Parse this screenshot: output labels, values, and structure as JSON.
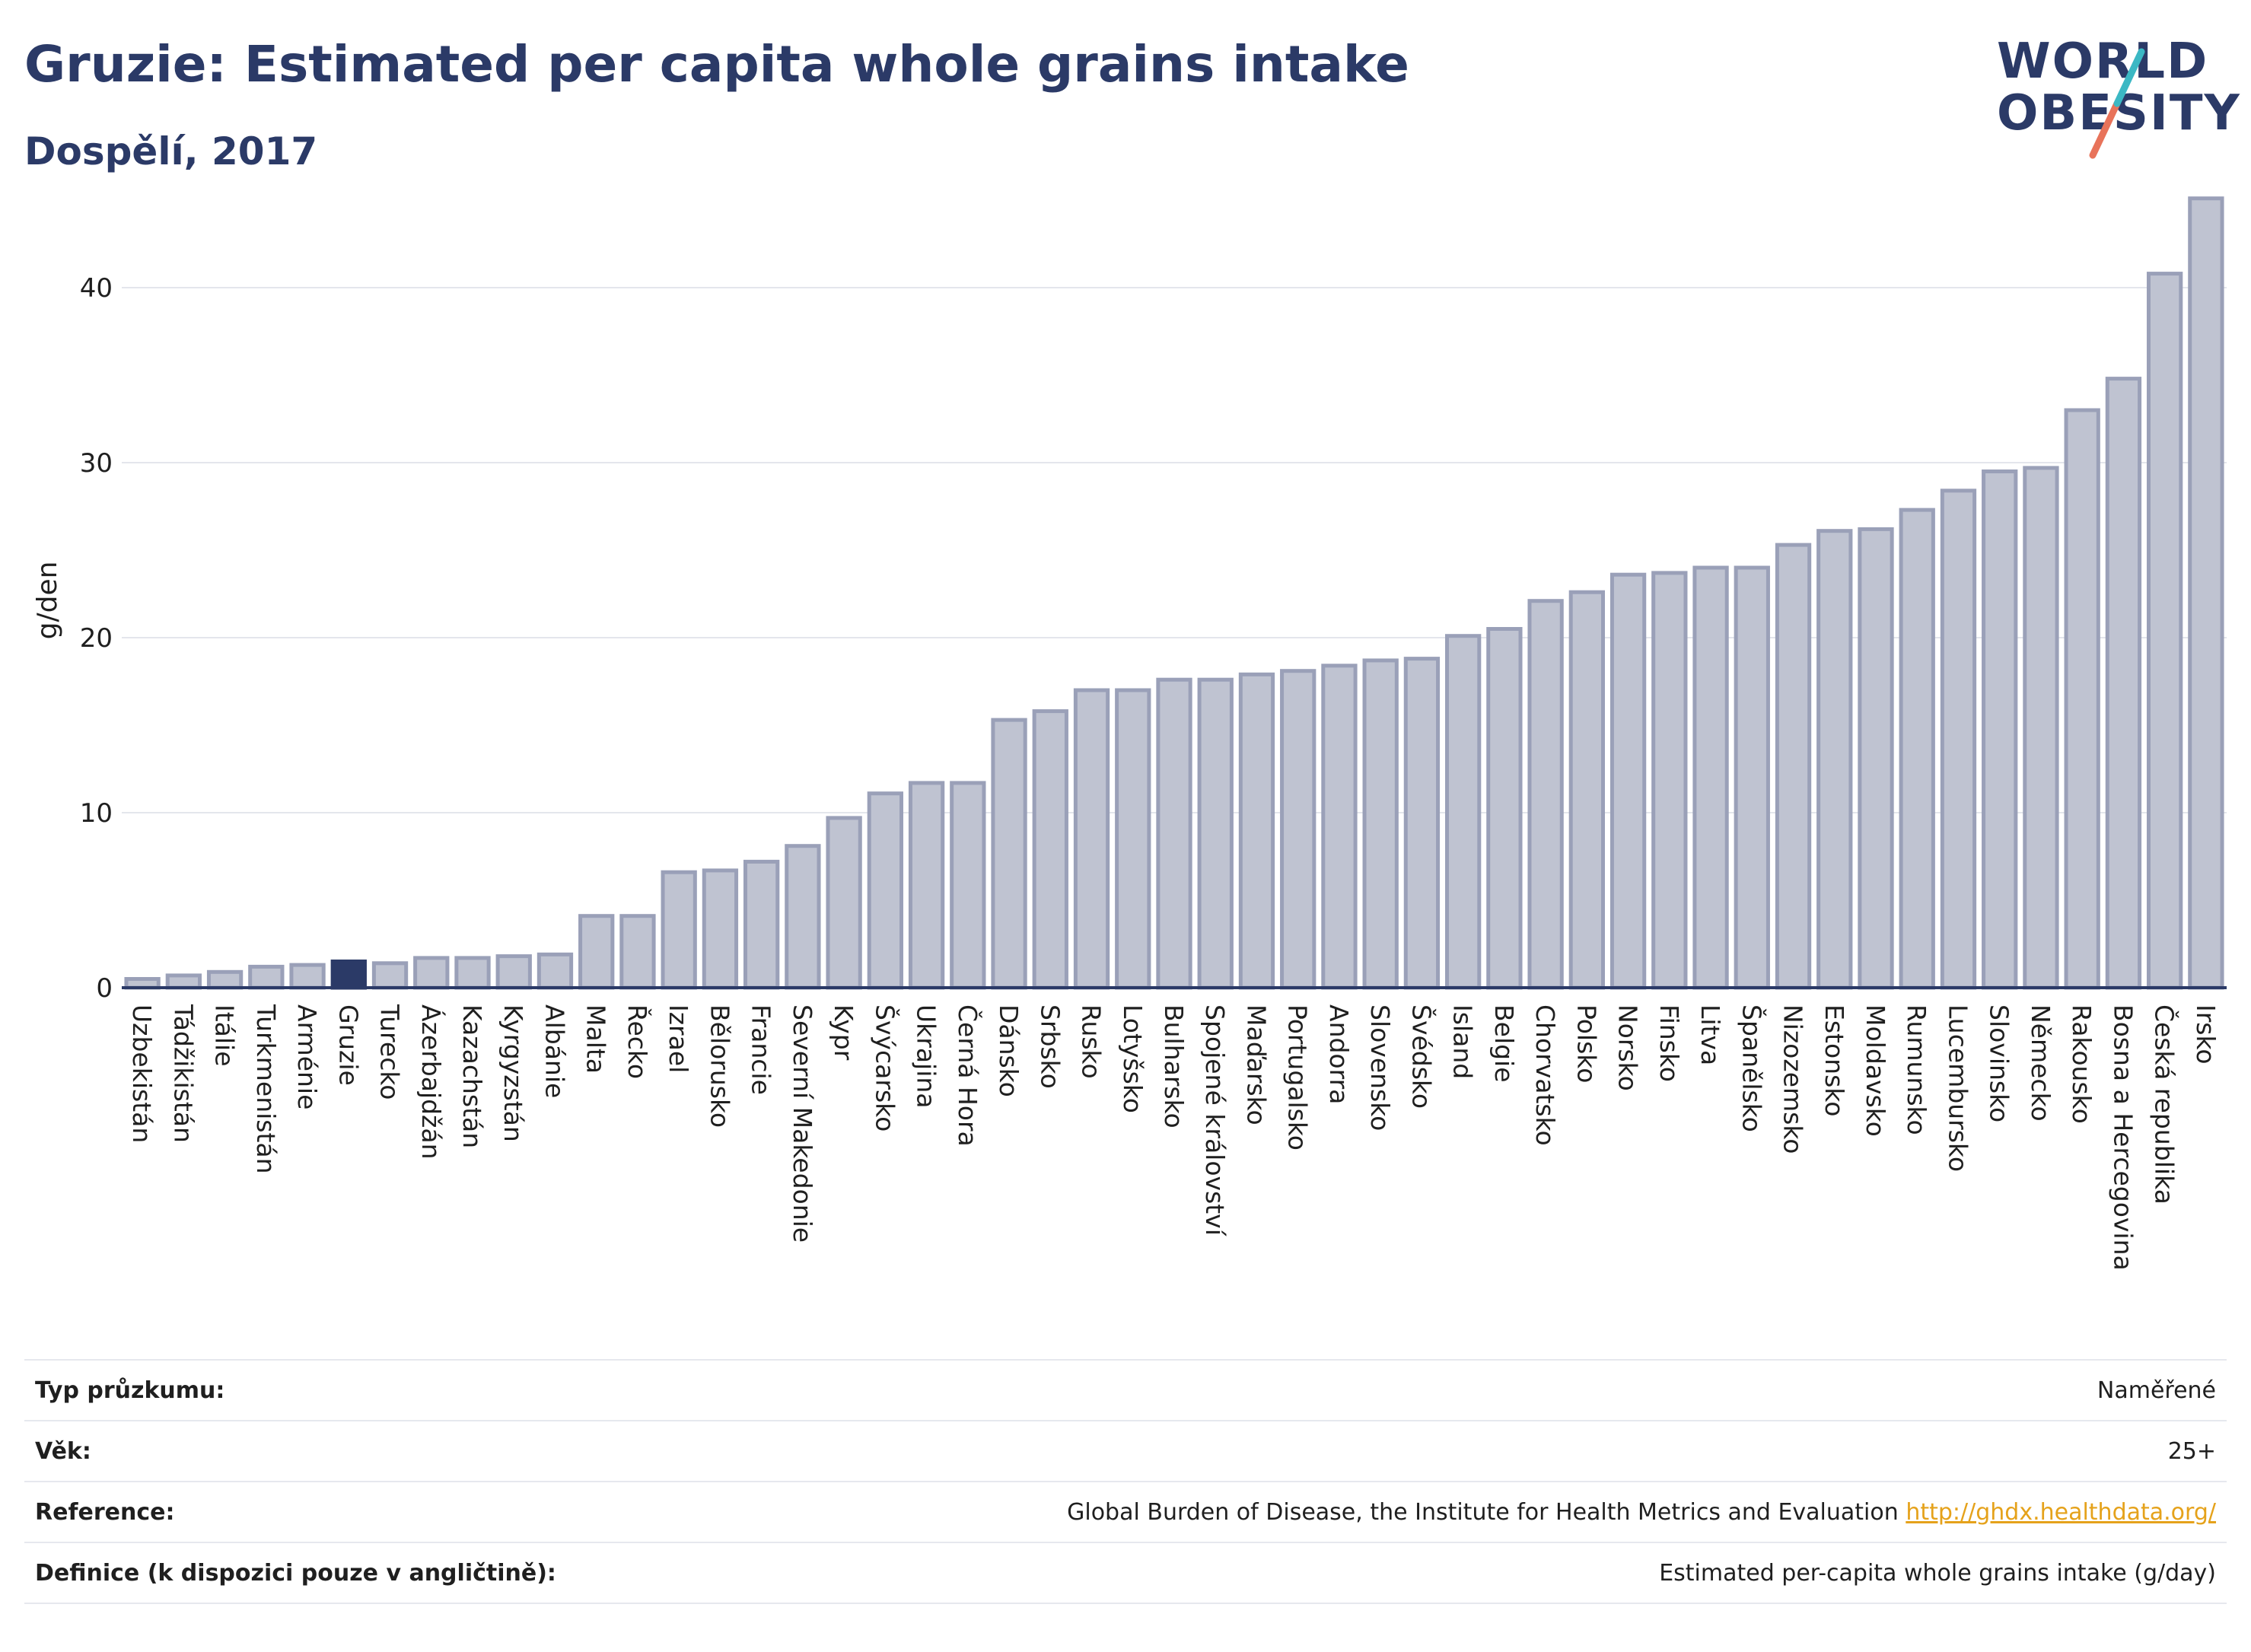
{
  "header": {
    "title": "Gruzie: Estimated per capita whole grains intake",
    "subtitle": "Dospělí, 2017"
  },
  "logo": {
    "line1": "WORLD",
    "line2": "OBESITY"
  },
  "colors": {
    "bar_fill": "#bfc3d1",
    "bar_stroke": "#9aa0b8",
    "highlight": "#2b3a67",
    "title": "#2b3a67",
    "logo_red": "#e8735a",
    "logo_teal": "#3bb8c4",
    "link": "#e5a21b"
  },
  "chart_data": {
    "type": "bar",
    "ylabel": "g/den",
    "ylim": [
      0,
      46
    ],
    "yticks": [
      0,
      10,
      20,
      30,
      40
    ],
    "grid": true,
    "highlight": "Gruzie",
    "categories": [
      "Uzbekistán",
      "Tádžikistán",
      "Itálie",
      "Turkmenistán",
      "Arménie",
      "Gruzie",
      "Turecko",
      "Ázerbajdžán",
      "Kazachstán",
      "Kyrgyzstán",
      "Albánie",
      "Malta",
      "Řecko",
      "Izrael",
      "Bělorusko",
      "Francie",
      "Severní Makedonie",
      "Kypr",
      "Švýcarsko",
      "Ukrajina",
      "Černá Hora",
      "Dánsko",
      "Srbsko",
      "Rusko",
      "Lotyšsko",
      "Bulharsko",
      "Spojené království",
      "Maďarsko",
      "Portugalsko",
      "Andorra",
      "Slovensko",
      "Švédsko",
      "Island",
      "Belgie",
      "Chorvatsko",
      "Polsko",
      "Norsko",
      "Finsko",
      "Litva",
      "Španělsko",
      "Nizozemsko",
      "Estonsko",
      "Moldavsko",
      "Rumunsko",
      "Lucembursko",
      "Slovinsko",
      "Německo",
      "Rakousko",
      "Bosna a Hercegovina",
      "Česká republika",
      "Irsko"
    ],
    "values": [
      0.5,
      0.7,
      0.9,
      1.2,
      1.3,
      1.5,
      1.4,
      1.7,
      1.7,
      1.8,
      1.9,
      4.1,
      4.1,
      6.6,
      6.7,
      7.2,
      8.1,
      9.7,
      11.1,
      11.7,
      11.7,
      15.3,
      15.8,
      17.0,
      17.0,
      17.6,
      17.6,
      17.9,
      18.1,
      18.4,
      18.7,
      18.8,
      20.1,
      20.5,
      22.1,
      22.6,
      23.6,
      23.7,
      24.0,
      24.0,
      25.3,
      26.1,
      26.2,
      27.3,
      28.4,
      29.5,
      29.7,
      33.0,
      34.8,
      40.8,
      45.1
    ]
  },
  "info": {
    "rows": [
      {
        "key": "Typ průzkumu:",
        "value": "Naměřené"
      },
      {
        "key": "Věk:",
        "value": "25+"
      },
      {
        "key": "Reference:",
        "value": "Global Burden of Disease, the Institute for Health Metrics and Evaluation",
        "link": "http://ghdx.healthdata.org/"
      },
      {
        "key": "Definice (k dispozici pouze v angličtině):",
        "value": "Estimated per-capita whole grains intake (g/day)"
      }
    ]
  }
}
